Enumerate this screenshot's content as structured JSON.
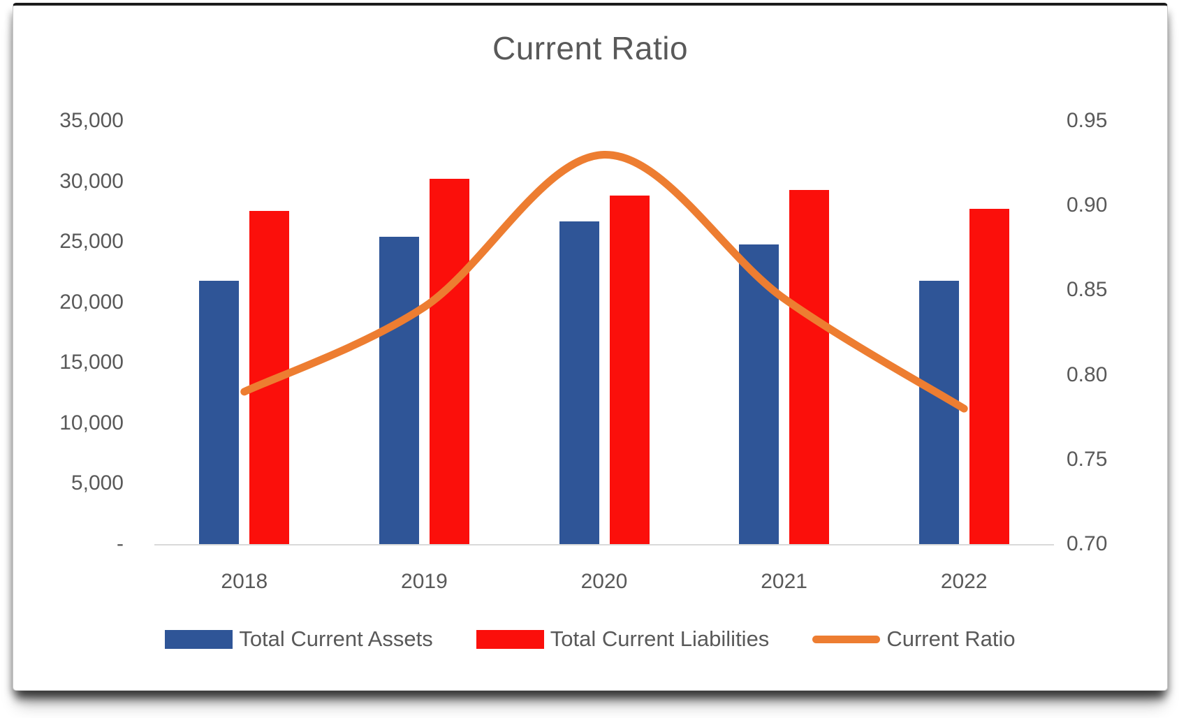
{
  "title": "Current Ratio",
  "legend": {
    "items": [
      {
        "label": "Total Current Assets",
        "color": "#2F5597",
        "swatch": "bar"
      },
      {
        "label": "Total Current Liabilities",
        "color": "#FB0F0B",
        "swatch": "bar"
      },
      {
        "label": "Current Ratio",
        "color": "#ED7D31",
        "swatch": "line"
      }
    ]
  },
  "colors": {
    "assets_bar": "#2F5597",
    "liabilities_bar": "#FB0F0B",
    "ratio_line": "#ED7D31",
    "axis_line": "#d9d9d9",
    "text": "#595959"
  },
  "chart_data": {
    "type": "combo-bar-line",
    "title": "Current Ratio",
    "categories": [
      "2018",
      "2019",
      "2020",
      "2021",
      "2022"
    ],
    "series": [
      {
        "name": "Total Current Assets",
        "type": "bar",
        "axis": "left",
        "color": "#2F5597",
        "values": [
          21800,
          25400,
          26700,
          24750,
          21800
        ]
      },
      {
        "name": "Total Current Liabilities",
        "type": "bar",
        "axis": "left",
        "color": "#FB0F0B",
        "values": [
          27550,
          30200,
          28800,
          29300,
          27750
        ]
      },
      {
        "name": "Current Ratio",
        "type": "line",
        "axis": "right",
        "color": "#ED7D31",
        "values": [
          0.79,
          0.84,
          0.93,
          0.845,
          0.78
        ]
      }
    ],
    "left_axis": {
      "min": 0,
      "max": 35000,
      "step": 5000,
      "tick_labels": [
        "35,000",
        "30,000",
        "25,000",
        "20,000",
        "15,000",
        "10,000",
        "5,000",
        "-"
      ]
    },
    "right_axis": {
      "min": 0.7,
      "max": 0.95,
      "step": 0.05,
      "tick_labels": [
        "0.95",
        "0.90",
        "0.85",
        "0.80",
        "0.75",
        "0.70"
      ]
    },
    "grid": false,
    "legend_position": "bottom"
  }
}
